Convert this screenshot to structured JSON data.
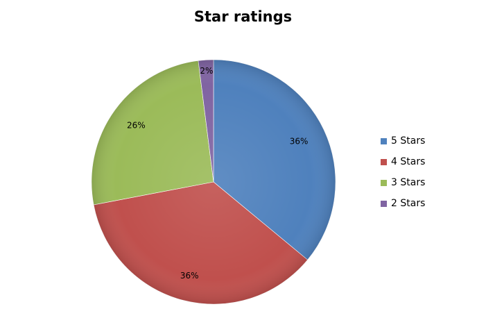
{
  "chart_data": {
    "type": "pie",
    "title": "Star ratings",
    "categories": [
      "5 Stars",
      "4 Stars",
      "3 Stars",
      "2 Stars"
    ],
    "values": [
      36,
      36,
      26,
      2
    ],
    "data_labels": [
      "36%",
      "36%",
      "26%",
      "2%"
    ],
    "colors": [
      "#4f81bd",
      "#c0504d",
      "#9bbb59",
      "#8064a2"
    ],
    "legend_position": "right"
  }
}
